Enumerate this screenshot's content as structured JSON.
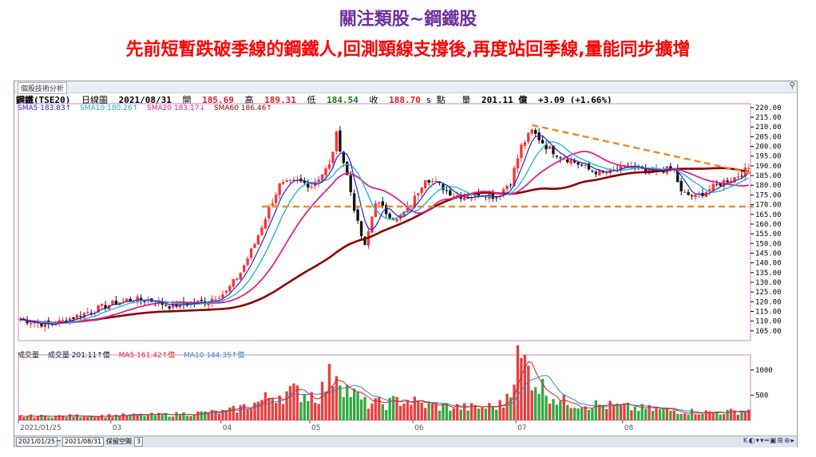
{
  "header": {
    "title": "關注類股~鋼鐵股",
    "subtitle": "先前短暫跌破季線的鋼鐵人,回測頸線支撐後,再度站回季線,量能同步擴增"
  },
  "window": {
    "tab_label": "個股技術分析",
    "zoom_icon": "magnifier-icon"
  },
  "info": {
    "symbol": "鋼鐵(TSE20)",
    "chart_type": "日線圖",
    "date": "2021/08/31",
    "open_label": "開",
    "open": "185.69",
    "high_label": "高",
    "high": "189.31",
    "low_label": "低",
    "low": "184.54",
    "close_label": "收",
    "close": "188.70",
    "unit": "s 點",
    "volume_label": "量",
    "volume": "201.11 億",
    "change": "+3.09 (+1.66%)"
  },
  "legend": {
    "sma5": "SMA5 183.83↑",
    "sma10": "SMA10 180.26↑",
    "sma20": "SMA20 183.17↓",
    "sma60": "SMA60 186.46↑"
  },
  "volume_legend": {
    "label": "成交量",
    "value": "成交量 201.11↑億",
    "ma5": "MA5 161.42↑億",
    "ma10": "MA10 144.35↑億"
  },
  "footer": {
    "start_date": "2021/01/25",
    "sep": "~",
    "end_date": "2021/08/31",
    "keep_label": "保留空間",
    "keep_value": "3",
    "tools": "K◐▾▾═▣⊞⊕▸"
  },
  "colors": {
    "up": "#ff3333",
    "down": "#111111",
    "sma5": "#2222dd",
    "sma10": "#22bbcc",
    "sma20": "#e0208a",
    "sma60": "#8b0000",
    "vol_up": "#e84040",
    "vol_down": "#33aa44",
    "dash": "#f08c1e"
  },
  "chart_data": {
    "type": "candlestick",
    "ylim": [
      100,
      222
    ],
    "yticks": [
      105,
      110,
      115,
      120,
      125,
      130,
      135,
      140,
      145,
      150,
      155,
      160,
      165,
      170,
      175,
      180,
      185,
      190,
      195,
      200,
      205,
      210,
      215,
      220
    ],
    "ytick_labels": [
      "105.00",
      "110.00",
      "115.00",
      "120.00",
      "125.00",
      "130.00",
      "135.00",
      "140.00",
      "145.00",
      "150.00",
      "155.00",
      "160.00",
      "165.00",
      "170.00",
      "175.00",
      "180.00",
      "185.00",
      "190.00",
      "195.00",
      "200.00",
      "205.00",
      "210.00",
      "215.00",
      "220.00"
    ],
    "xlabels": [
      {
        "label": "2021/01/25",
        "i": 0
      },
      {
        "label": "03",
        "i": 26
      },
      {
        "label": "04",
        "i": 57
      },
      {
        "label": "05",
        "i": 82
      },
      {
        "label": "06",
        "i": 111
      },
      {
        "label": "07",
        "i": 140
      },
      {
        "label": "08",
        "i": 170
      }
    ],
    "n": 206,
    "anchors": [
      [
        0,
        111
      ],
      [
        8,
        108
      ],
      [
        12,
        110
      ],
      [
        18,
        114
      ],
      [
        24,
        118
      ],
      [
        30,
        121
      ],
      [
        36,
        121
      ],
      [
        42,
        118
      ],
      [
        52,
        120
      ],
      [
        58,
        125
      ],
      [
        62,
        135
      ],
      [
        66,
        150
      ],
      [
        70,
        168
      ],
      [
        73,
        180
      ],
      [
        78,
        182
      ],
      [
        82,
        180
      ],
      [
        87,
        190
      ],
      [
        89,
        206
      ],
      [
        92,
        185
      ],
      [
        95,
        160
      ],
      [
        97,
        148
      ],
      [
        100,
        172
      ],
      [
        103,
        166
      ],
      [
        106,
        162
      ],
      [
        110,
        170
      ],
      [
        114,
        184
      ],
      [
        118,
        180
      ],
      [
        122,
        175
      ],
      [
        126,
        174
      ],
      [
        130,
        176
      ],
      [
        134,
        174
      ],
      [
        138,
        182
      ],
      [
        141,
        200
      ],
      [
        144,
        208
      ],
      [
        148,
        200
      ],
      [
        152,
        195
      ],
      [
        156,
        192
      ],
      [
        160,
        188
      ],
      [
        164,
        186
      ],
      [
        168,
        188
      ],
      [
        172,
        190
      ],
      [
        176,
        186
      ],
      [
        180,
        188
      ],
      [
        184,
        188
      ],
      [
        186,
        176
      ],
      [
        190,
        174
      ],
      [
        194,
        178
      ],
      [
        198,
        182
      ],
      [
        201,
        184
      ],
      [
        205,
        188.7
      ]
    ],
    "sma5": "SMA5 183.83",
    "sma10": "SMA10 180.26",
    "sma20": "SMA20 183.17",
    "sma60": "SMA60 186.46",
    "support_line": {
      "value": 169,
      "from": 68,
      "to": 206
    },
    "trend_line": {
      "from": [
        144,
        211
      ],
      "to": [
        206,
        186
      ]
    },
    "volume": {
      "ylim": [
        0,
        1300
      ],
      "yticks": [
        500,
        1000
      ],
      "ytick_labels": [
        "500",
        "1000"
      ],
      "anchors": [
        [
          0,
          80
        ],
        [
          20,
          90
        ],
        [
          40,
          110
        ],
        [
          58,
          170
        ],
        [
          66,
          330
        ],
        [
          72,
          520
        ],
        [
          78,
          560
        ],
        [
          84,
          500
        ],
        [
          89,
          1050
        ],
        [
          92,
          620
        ],
        [
          97,
          340
        ],
        [
          103,
          330
        ],
        [
          108,
          420
        ],
        [
          113,
          320
        ],
        [
          118,
          280
        ],
        [
          124,
          260
        ],
        [
          130,
          250
        ],
        [
          136,
          320
        ],
        [
          140,
          1180
        ],
        [
          142,
          1120
        ],
        [
          146,
          700
        ],
        [
          152,
          380
        ],
        [
          158,
          330
        ],
        [
          164,
          300
        ],
        [
          170,
          260
        ],
        [
          176,
          230
        ],
        [
          182,
          200
        ],
        [
          188,
          180
        ],
        [
          194,
          160
        ],
        [
          200,
          170
        ],
        [
          205,
          201
        ]
      ]
    }
  }
}
